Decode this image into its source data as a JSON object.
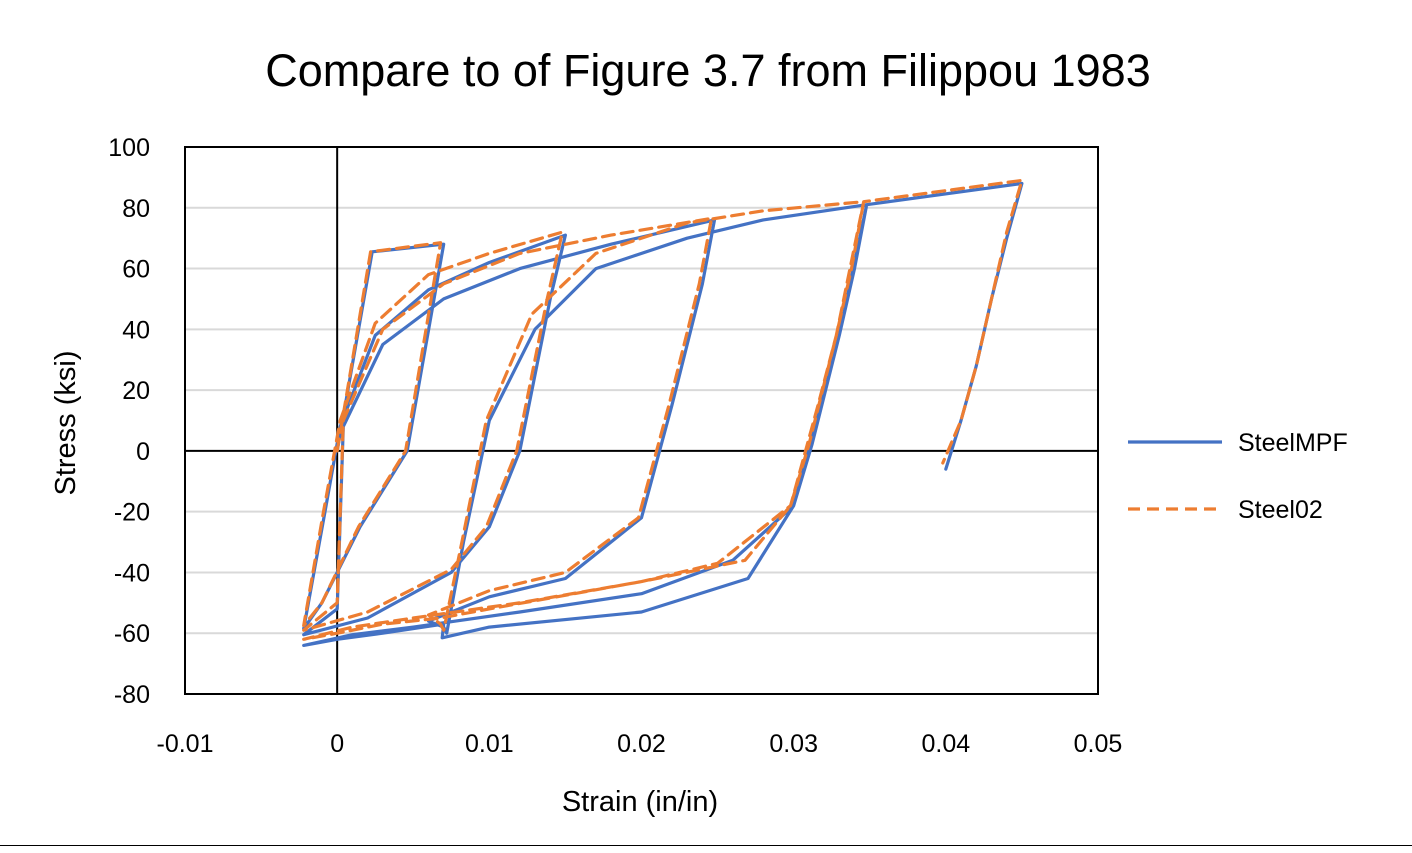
{
  "chart_data": {
    "type": "line",
    "title": "Compare to of Figure 3.7 from Filippou 1983",
    "xlabel": "Strain (in/in)",
    "ylabel": "Stress (ksi)",
    "xlim": [
      -0.01,
      0.05
    ],
    "ylim": [
      -80,
      100
    ],
    "x_ticks": [
      -0.01,
      0,
      0.01,
      0.02,
      0.03,
      0.04,
      0.05
    ],
    "x_tick_labels": [
      "-0.01",
      "0",
      "0.01",
      "0.02",
      "0.03",
      "0.04",
      "0.05"
    ],
    "y_ticks": [
      -80,
      -60,
      -40,
      -20,
      0,
      20,
      40,
      60,
      80,
      100
    ],
    "y_tick_labels": [
      "-80",
      "-60",
      "-40",
      "-20",
      "0",
      "20",
      "40",
      "60",
      "80",
      "100"
    ],
    "grid": "horizontal",
    "legend": "right",
    "series": [
      {
        "name": "SteelMPF",
        "style": "solid",
        "color": "#4472C4",
        "segments": [
          [
            [
              0,
              0
            ],
            [
              0.0023,
              65.5
            ],
            [
              0.007,
              68.0
            ],
            [
              0.0046,
              0
            ],
            [
              0.0015,
              -25
            ],
            [
              -0.001,
              -50
            ],
            [
              -0.0022,
              -58.5
            ],
            [
              -0.0008,
              -20
            ],
            [
              0.0002,
              8
            ],
            [
              0.0025,
              38
            ],
            [
              0.006,
              53
            ],
            [
              0.01,
              62
            ],
            [
              0.015,
              71
            ],
            [
              0.014,
              50
            ],
            [
              0.012,
              0
            ],
            [
              0.01,
              -25
            ],
            [
              0.0075,
              -40
            ],
            [
              0.002,
              -55
            ],
            [
              -0.0022,
              -60.5
            ],
            [
              0.0,
              -52
            ],
            [
              0.0004,
              8
            ],
            [
              0.003,
              35
            ],
            [
              0.007,
              50
            ],
            [
              0.012,
              60
            ],
            [
              0.018,
              68
            ],
            [
              0.0248,
              76
            ],
            [
              0.024,
              55
            ],
            [
              0.022,
              15
            ],
            [
              0.02,
              -22
            ],
            [
              0.015,
              -42
            ],
            [
              0.01,
              -48
            ],
            [
              0.006,
              -56
            ],
            [
              0.007,
              -58
            ],
            [
              0.0072,
              -60
            ],
            [
              0.0083,
              -30
            ],
            [
              0.01,
              10
            ],
            [
              0.013,
              40
            ],
            [
              0.017,
              60
            ],
            [
              0.023,
              70
            ],
            [
              0.028,
              76
            ],
            [
              0.0348,
              81
            ],
            [
              0.034,
              60
            ],
            [
              0.033,
              38
            ],
            [
              0.0318,
              15
            ],
            [
              0.03,
              -18
            ],
            [
              0.026,
              -36
            ],
            [
              0.02,
              -47
            ],
            [
              0.012,
              -53
            ],
            [
              0.005,
              -58
            ],
            [
              0.001,
              -60.5
            ],
            [
              -0.0022,
              -64
            ],
            [
              0.0,
              -62
            ],
            [
              0.003,
              -60
            ],
            [
              0.007,
              -57
            ],
            [
              0.0069,
              -61.5
            ],
            [
              0.01,
              -58
            ],
            [
              0.02,
              -53
            ],
            [
              0.027,
              -42
            ],
            [
              0.03,
              -18
            ],
            [
              0.0312,
              2
            ],
            [
              0.033,
              38
            ],
            [
              0.0348,
              81
            ],
            [
              0.045,
              88
            ],
            [
              0.044,
              70
            ],
            [
              0.043,
              50
            ],
            [
              0.042,
              28
            ],
            [
              0.041,
              10
            ],
            [
              0.04,
              -6
            ]
          ]
        ]
      },
      {
        "name": "Steel02",
        "style": "dashed",
        "color": "#ED7D31",
        "segments": [
          [
            [
              0,
              0
            ],
            [
              0.0022,
              65.5
            ],
            [
              0.0068,
              68.5
            ],
            [
              0.0045,
              0
            ],
            [
              0.0014,
              -25
            ],
            [
              -0.001,
              -50
            ],
            [
              -0.0022,
              -57.5
            ],
            [
              -0.0009,
              -20
            ],
            [
              0.0002,
              10
            ],
            [
              0.0025,
              42
            ],
            [
              0.006,
              58
            ],
            [
              0.01,
              65
            ],
            [
              0.0148,
              72
            ],
            [
              0.0138,
              50
            ],
            [
              0.0118,
              0
            ],
            [
              0.0098,
              -25
            ],
            [
              0.0075,
              -39
            ],
            [
              0.002,
              -53
            ],
            [
              -0.0022,
              -59
            ],
            [
              0.0,
              -50
            ],
            [
              0.0004,
              10
            ],
            [
              0.003,
              40
            ],
            [
              0.007,
              55
            ],
            [
              0.012,
              65
            ],
            [
              0.018,
              71
            ],
            [
              0.0246,
              76.5
            ],
            [
              0.0238,
              55
            ],
            [
              0.0218,
              15
            ],
            [
              0.0198,
              -22
            ],
            [
              0.015,
              -40
            ],
            [
              0.01,
              -46
            ],
            [
              0.006,
              -54
            ],
            [
              0.0068,
              -57
            ],
            [
              0.007,
              -59
            ],
            [
              0.0082,
              -30
            ],
            [
              0.0098,
              10
            ],
            [
              0.0128,
              45
            ],
            [
              0.017,
              65
            ],
            [
              0.023,
              75
            ],
            [
              0.028,
              79
            ],
            [
              0.0346,
              82
            ],
            [
              0.0338,
              60
            ],
            [
              0.0328,
              38
            ],
            [
              0.0316,
              15
            ],
            [
              0.0298,
              -18
            ],
            [
              0.025,
              -37
            ],
            [
              0.02,
              -43
            ],
            [
              0.012,
              -50
            ],
            [
              0.005,
              -55
            ],
            [
              0.001,
              -58
            ],
            [
              -0.0022,
              -62
            ],
            [
              0.0,
              -60
            ],
            [
              0.003,
              -57
            ],
            [
              0.0068,
              -55
            ],
            [
              0.01,
              -52
            ],
            [
              0.02,
              -43
            ],
            [
              0.0268,
              -36
            ],
            [
              0.0298,
              -18
            ],
            [
              0.031,
              2
            ],
            [
              0.0328,
              38
            ],
            [
              0.0346,
              82
            ],
            [
              0.045,
              89
            ],
            [
              0.044,
              72
            ],
            [
              0.043,
              50
            ],
            [
              0.042,
              28
            ],
            [
              0.041,
              10
            ],
            [
              0.0398,
              -4
            ]
          ]
        ]
      }
    ]
  }
}
